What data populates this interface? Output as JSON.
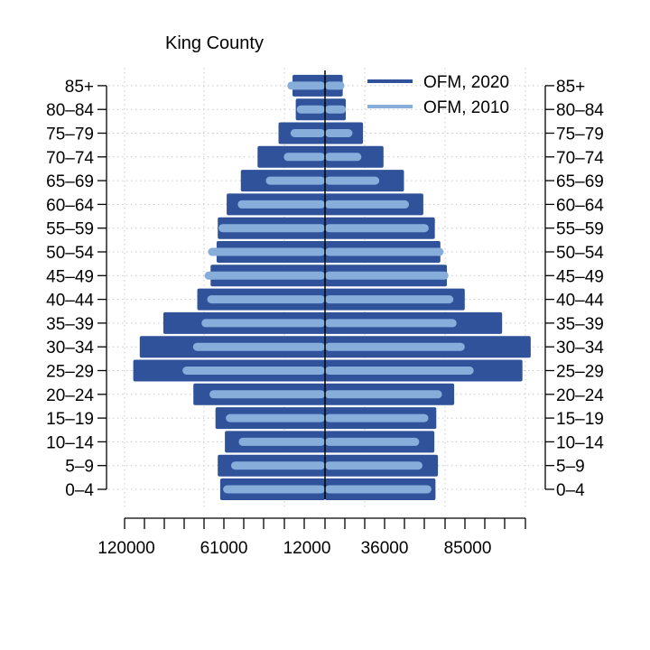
{
  "chart_data": {
    "type": "bar",
    "subtype": "population-pyramid",
    "title": "King County",
    "xlabel": "",
    "ylabel": "",
    "categories": [
      "0–4",
      "5–9",
      "10–14",
      "15–19",
      "20–24",
      "25–29",
      "30–34",
      "35–39",
      "40–44",
      "45–49",
      "50–54",
      "55–59",
      "60–64",
      "65–69",
      "70–74",
      "75–79",
      "80–84",
      "85+"
    ],
    "series": [
      {
        "name": "OFM, 2020",
        "color": "#2f529b",
        "left_values": [
          64500,
          66000,
          61600,
          67400,
          81000,
          118000,
          114000,
          99500,
          78600,
          70400,
          66700,
          66000,
          60500,
          51800,
          41500,
          28600,
          18000,
          20000
        ],
        "right_values": [
          68000,
          69500,
          67300,
          68500,
          79500,
          121500,
          126600,
          109000,
          86000,
          75000,
          71000,
          67600,
          60500,
          48600,
          36000,
          23400,
          12800,
          10900
        ]
      },
      {
        "name": "OFM, 2010",
        "color": "#87aedb",
        "left_values": [
          62700,
          57800,
          53100,
          61000,
          71100,
          87700,
          81200,
          76000,
          72500,
          74100,
          72000,
          65500,
          53700,
          36400,
          25400,
          21200,
          17400,
          23200
        ],
        "right_values": [
          65500,
          60000,
          58000,
          63600,
          72000,
          91500,
          86000,
          81000,
          79000,
          76000,
          73000,
          63800,
          51700,
          33400,
          22400,
          16900,
          12900,
          12000
        ]
      }
    ],
    "x_tick_labels": [
      "120000",
      "61000",
      "12000",
      "36000",
      "85000"
    ],
    "xlim": [
      -124000,
      130000
    ],
    "grid": true,
    "legend_position": "top-right"
  }
}
